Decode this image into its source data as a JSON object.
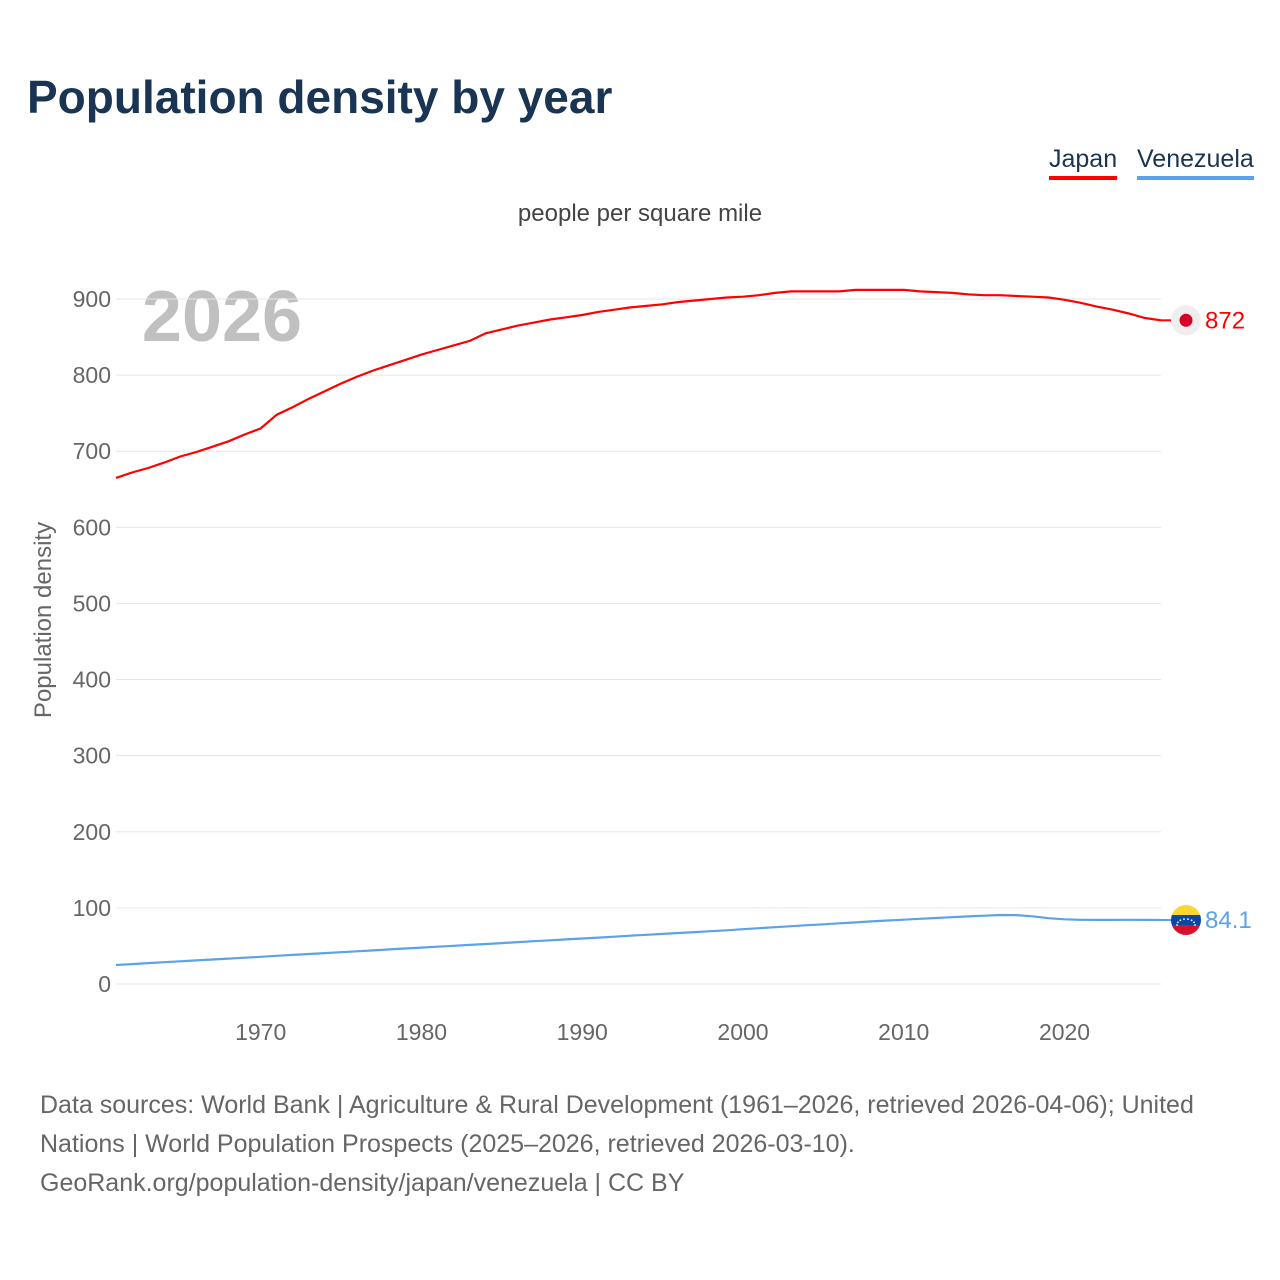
{
  "title": "Population density by year",
  "footer": {
    "sources": "Data sources: World Bank | Agriculture & Rural Development (1961–2026, retrieved 2026-04-06); United Nations | World Population Prospects (2025–2026, retrieved 2026-03-10).",
    "credit": "GeoRank.org/population-density/japan/venezuela | CC BY"
  },
  "chart_data": {
    "type": "line",
    "subtitle": "people per square mile",
    "ylabel": "Population density",
    "xlabel": "",
    "year_watermark": "2026",
    "ylim": [
      0,
      900
    ],
    "xlim": [
      1961,
      2026
    ],
    "yticks": [
      0,
      100,
      200,
      300,
      400,
      500,
      600,
      700,
      800,
      900
    ],
    "xticks": [
      1970,
      1980,
      1990,
      2000,
      2010,
      2020
    ],
    "grid": true,
    "legend_position": "top-right",
    "x_start": 1961,
    "series": [
      {
        "name": "Japan",
        "color": "#ff0000",
        "end_label": "872",
        "flag_icon": "japan-flag",
        "values": [
          665,
          672,
          678,
          685,
          693,
          699,
          706,
          713,
          722,
          730,
          748,
          758,
          769,
          779,
          789,
          798,
          806,
          813,
          820,
          827,
          833,
          839,
          845,
          855,
          860,
          865,
          869,
          873,
          876,
          879,
          883,
          886,
          889,
          891,
          893,
          896,
          898,
          900,
          902,
          903,
          905,
          908,
          910,
          910,
          910,
          910,
          912,
          912,
          912,
          912,
          910,
          909,
          908,
          906,
          905,
          905,
          904,
          903,
          902,
          899,
          895,
          890,
          886,
          881,
          875,
          872
        ]
      },
      {
        "name": "Venezuela",
        "color": "#5aa2ea",
        "end_label": "84.1",
        "flag_icon": "venezuela-flag",
        "values": [
          25,
          26.2,
          27.4,
          28.6,
          29.8,
          31,
          32.2,
          33.4,
          34.6,
          35.8,
          37,
          38.2,
          39.4,
          40.6,
          41.8,
          43,
          44.2,
          45.4,
          46.6,
          47.8,
          49,
          50.2,
          51.4,
          52.6,
          53.8,
          55,
          56.2,
          57.4,
          58.6,
          59.8,
          61,
          62.2,
          63.4,
          64.6,
          65.8,
          67,
          68.2,
          69.4,
          70.6,
          72,
          73.3,
          74.6,
          75.9,
          77.2,
          78.5,
          79.8,
          81,
          82.2,
          83.4,
          84.5,
          85.6,
          86.7,
          87.8,
          88.8,
          89.8,
          90.6,
          90.5,
          89,
          86.5,
          85,
          84.4,
          84.2,
          84.2,
          84.3,
          84.2,
          84.1
        ]
      }
    ]
  }
}
